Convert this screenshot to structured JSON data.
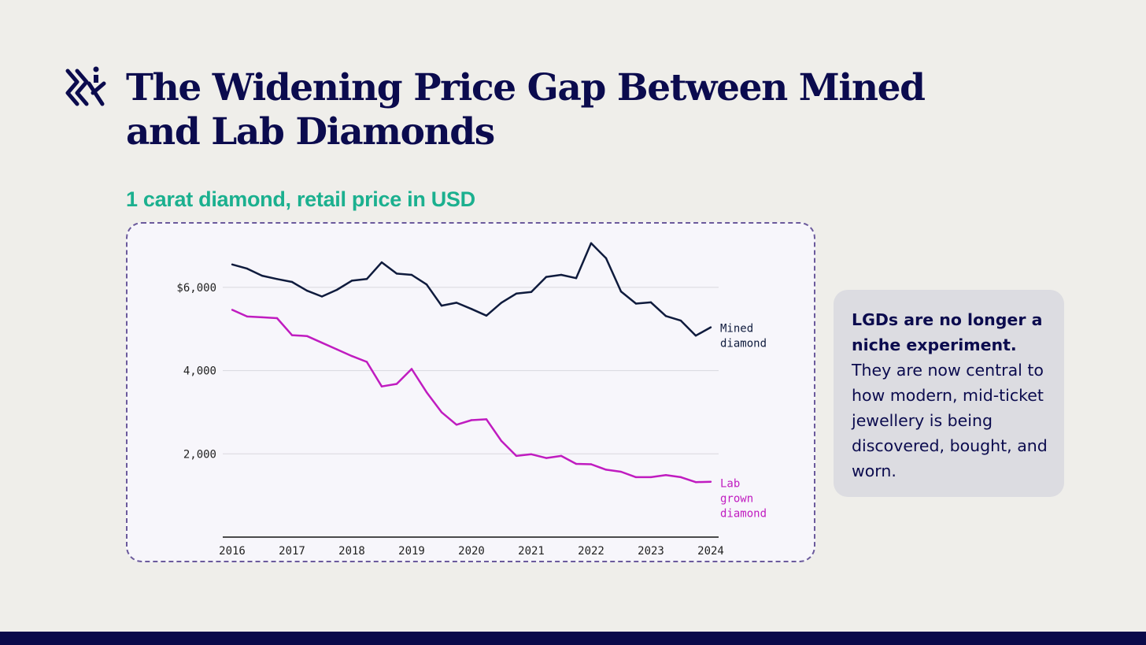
{
  "slide": {
    "title": "The Widening Price Gap Between Mined and Lab Diamonds",
    "callout": {
      "bold": "LGDs are no longer a niche experiment.",
      "body": "They are now central to how modern, mid-ticket jewellery is being discovered, bought, and worn."
    },
    "colors": {
      "title": "#0b0b4e",
      "subtitle": "#1bb08f",
      "footer": "#0a0a4a"
    },
    "logo_icon": "brand-logo-icon"
  },
  "chart_data": {
    "type": "line",
    "title": "1 carat diamond, retail price in USD",
    "xlim": [
      2016,
      2024
    ],
    "ylim": [
      0,
      7000
    ],
    "x_ticks": [
      "2016",
      "2017",
      "2018",
      "2019",
      "2020",
      "2021",
      "2022",
      "2023",
      "2024"
    ],
    "y_ticks": [
      {
        "value": 2000,
        "label": "2,000"
      },
      {
        "value": 4000,
        "label": "4,000"
      },
      {
        "value": 6000,
        "label": "$6,000"
      }
    ],
    "grid": true,
    "x": [
      2016.0,
      2016.25,
      2016.5,
      2016.75,
      2017.0,
      2017.25,
      2017.5,
      2017.75,
      2018.0,
      2018.25,
      2018.5,
      2018.75,
      2019.0,
      2019.25,
      2019.5,
      2019.75,
      2020.0,
      2020.25,
      2020.5,
      2020.75,
      2021.0,
      2021.25,
      2021.5,
      2021.75,
      2022.0,
      2022.25,
      2022.5,
      2022.75,
      2023.0,
      2023.25,
      2023.5,
      2023.75,
      2024.0
    ],
    "series": [
      {
        "name": "Mined diamond",
        "label_lines": [
          "Mined",
          "diamond"
        ],
        "color": "#0f1b3d",
        "values": [
          6550,
          6450,
          6280,
          6200,
          6130,
          5920,
          5780,
          5940,
          6160,
          6200,
          6600,
          6330,
          6300,
          6070,
          5560,
          5630,
          5480,
          5320,
          5630,
          5850,
          5890,
          6250,
          6300,
          6220,
          7060,
          6700,
          5900,
          5610,
          5640,
          5310,
          5200,
          4840,
          5040
        ]
      },
      {
        "name": "Lab grown diamond",
        "label_lines": [
          "Lab",
          "grown",
          "diamond"
        ],
        "color": "#c01cc0",
        "values": [
          5460,
          5300,
          5280,
          5260,
          4850,
          4830,
          4670,
          4510,
          4350,
          4210,
          3620,
          3680,
          4040,
          3480,
          3000,
          2700,
          2810,
          2830,
          2310,
          1950,
          1990,
          1900,
          1950,
          1760,
          1750,
          1620,
          1570,
          1440,
          1440,
          1490,
          1440,
          1320,
          1330
        ]
      }
    ]
  }
}
